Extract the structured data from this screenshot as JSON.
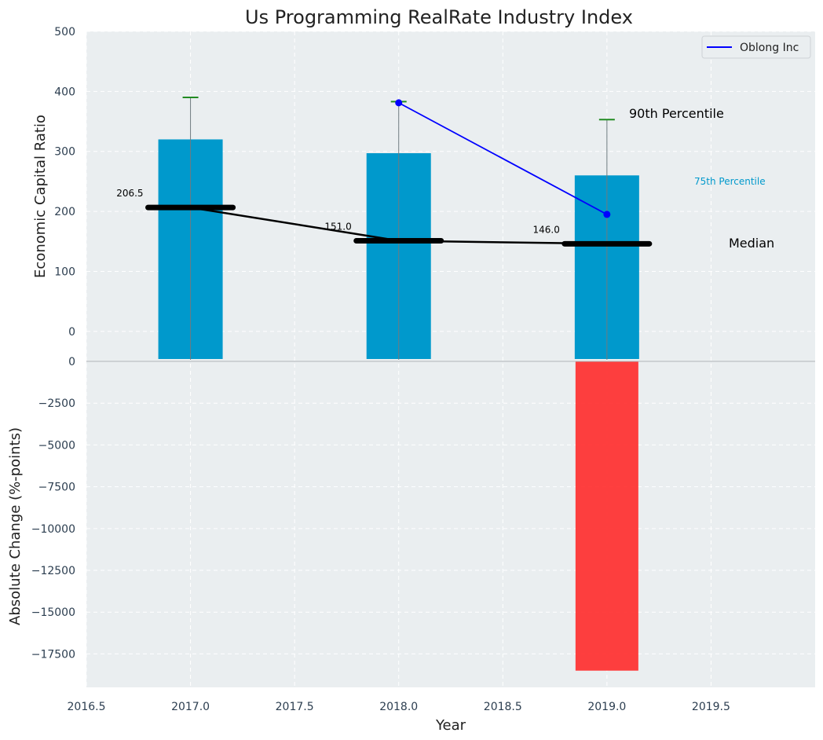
{
  "chart_data": {
    "type": "bar",
    "title": "Us Programming RealRate Industry Index",
    "xlabel": "Year",
    "x_ticks": [
      "2016.5",
      "2017.0",
      "2017.5",
      "2018.0",
      "2018.5",
      "2019.0",
      "2019.5"
    ],
    "xlim": [
      2016.5,
      2020.0
    ],
    "top_panel": {
      "ylabel": "Economic Capital Ratio",
      "ylim": [
        -50,
        500
      ],
      "y_ticks": [
        "0",
        "100",
        "200",
        "300",
        "400",
        "500"
      ],
      "years": [
        2017,
        2018,
        2019
      ],
      "bars_75th_percentile": [
        320,
        297,
        260
      ],
      "whisker_90th_percentile": [
        390,
        383,
        353
      ],
      "median": [
        206.5,
        151.0,
        146.0
      ],
      "median_labels": [
        "206.5",
        "151.0",
        "146.0"
      ],
      "company_series": {
        "name": "Oblong Inc",
        "x": [
          2018,
          2019
        ],
        "values": [
          381,
          195
        ]
      },
      "annotations": {
        "p90": "90th Percentile",
        "p75": "75th Percentile",
        "median": "Median"
      },
      "bar_color": "#0099cc",
      "whisker_color": "#228b22",
      "company_color": "#0000ff",
      "median_color": "#000000"
    },
    "bottom_panel": {
      "ylabel": "Absolute Change (%-points)",
      "ylim": [
        -19500,
        0
      ],
      "y_ticks": [
        "0",
        "−2500",
        "−5000",
        "−7500",
        "−10000",
        "−12500",
        "−15000",
        "−17500"
      ],
      "years": [
        2017,
        2018,
        2019
      ],
      "values": [
        0,
        0,
        -18500
      ],
      "negative_color": "#ff2a2a"
    },
    "legend": {
      "position": "top-right",
      "entries": [
        "Oblong Inc"
      ]
    },
    "grid": true,
    "background": "#eaeef0"
  }
}
